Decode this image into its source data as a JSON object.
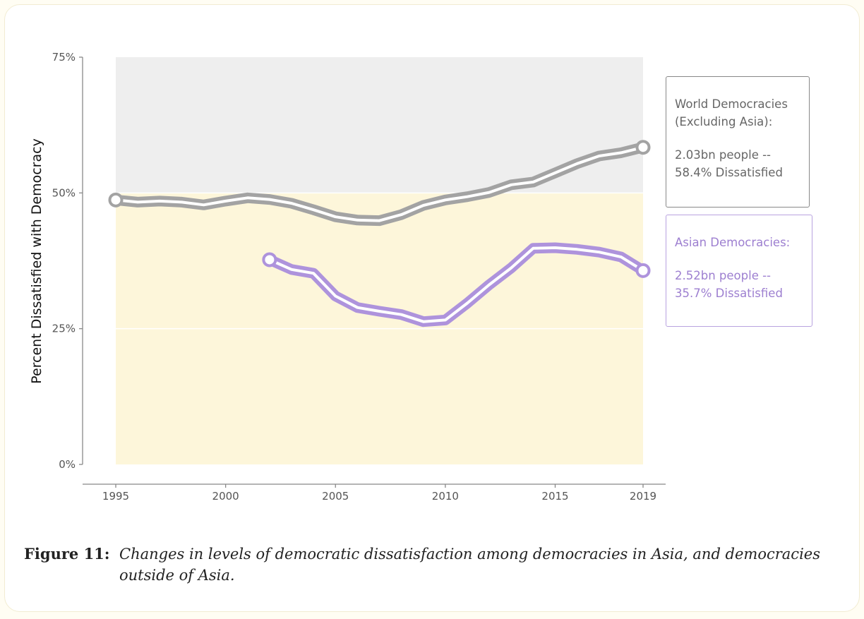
{
  "colors": {
    "world": "#a3a3a3",
    "asia": "#ae93dc",
    "upper_band": "#eeeeee",
    "lower_band": "#fdf6da",
    "legend_world_text": "#666666",
    "legend_asia_text": "#9d7fd0",
    "legend_asia_border": "#b9a3e0",
    "legend_world_border": "#888888"
  },
  "chart_data": {
    "type": "line",
    "ylabel": "Percent Dissatisfied with Democracy",
    "xlabel": "",
    "xlim": [
      1995,
      2019
    ],
    "ylim": [
      0,
      75
    ],
    "x_ticks": [
      1995,
      2000,
      2005,
      2010,
      2015,
      2019
    ],
    "y_ticks": [
      0,
      25,
      50,
      75
    ],
    "y_tick_labels": [
      "0%",
      "25%",
      "50%",
      "75%"
    ],
    "bands": [
      {
        "from": 50,
        "to": 75,
        "color": "#eeeeee"
      },
      {
        "from": 0,
        "to": 50,
        "color": "#fdf6da"
      }
    ],
    "series": [
      {
        "key": "world",
        "x": [
          1995,
          1996,
          1997,
          1998,
          1999,
          2000,
          2001,
          2002,
          2003,
          2004,
          2005,
          2006,
          2007,
          2008,
          2009,
          2010,
          2011,
          2012,
          2013,
          2014,
          2015,
          2016,
          2017,
          2018,
          2019
        ],
        "y": [
          48.7,
          48.3,
          48.5,
          48.3,
          47.8,
          48.5,
          49.1,
          48.8,
          48.1,
          46.9,
          45.6,
          45.0,
          44.9,
          46.0,
          47.7,
          48.7,
          49.3,
          50.1,
          51.5,
          52.0,
          53.7,
          55.4,
          56.8,
          57.4,
          58.4
        ]
      },
      {
        "key": "asia",
        "x": [
          2002,
          2003,
          2004,
          2005,
          2006,
          2007,
          2008,
          2009,
          2010,
          2011,
          2012,
          2013,
          2014,
          2015,
          2016,
          2017,
          2018,
          2019
        ],
        "y": [
          37.7,
          35.9,
          35.2,
          31.0,
          28.9,
          28.2,
          27.6,
          26.3,
          26.6,
          29.7,
          33.1,
          36.2,
          39.8,
          39.9,
          39.6,
          39.1,
          38.2,
          35.7
        ]
      }
    ]
  },
  "legend": {
    "world": {
      "title_line1": "World Democracies",
      "title_line2": "(Excluding Asia):",
      "stat_line1": "2.03bn people --",
      "stat_line2": "58.4% Dissatisfied"
    },
    "asia": {
      "title_line1": "Asian Democracies:",
      "stat_line1": "2.52bn people --",
      "stat_line2": "35.7% Dissatisfied"
    }
  },
  "caption": {
    "label": "Figure 11:",
    "text": "Changes in levels of democratic dissatisfaction among democracies in Asia, and democracies outside of Asia."
  }
}
